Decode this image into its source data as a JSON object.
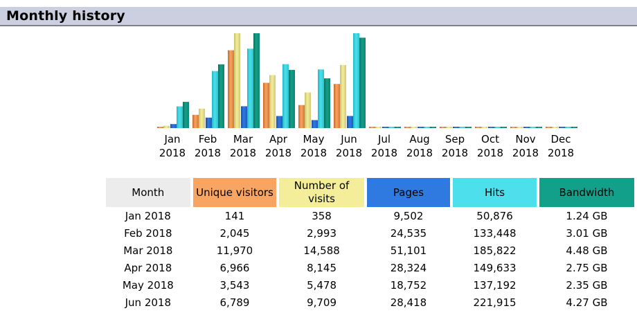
{
  "section": {
    "title": "Monthly history"
  },
  "colors": {
    "header_bg": "#cbcfe0",
    "unique_visitors": "#f8a463",
    "visits": "#f4ee9a",
    "pages": "#2f7ae0",
    "hits": "#4de0ec",
    "bandwidth": "#13a08a",
    "month_header": "#ececec"
  },
  "chart_data": {
    "type": "bar",
    "categories": [
      "Jan 2018",
      "Feb 2018",
      "Mar 2018",
      "Apr 2018",
      "May 2018",
      "Jun 2018",
      "Jul 2018",
      "Aug 2018",
      "Sep 2018",
      "Oct 2018",
      "Nov 2018",
      "Dec 2018"
    ],
    "month_labels": [
      "Jan",
      "Feb",
      "Mar",
      "Apr",
      "May",
      "Jun",
      "Jul",
      "Aug",
      "Sep",
      "Oct",
      "Nov",
      "Dec"
    ],
    "year_label": "2018",
    "series": [
      {
        "name": "Unique visitors",
        "values": [
          141,
          2045,
          11970,
          6966,
          3543,
          6789,
          0,
          0,
          0,
          0,
          0,
          0
        ]
      },
      {
        "name": "Number of visits",
        "values": [
          358,
          2993,
          14588,
          8145,
          5478,
          9709,
          0,
          0,
          0,
          0,
          0,
          0
        ]
      },
      {
        "name": "Pages",
        "values": [
          9502,
          24535,
          51101,
          28324,
          18752,
          28418,
          0,
          0,
          0,
          0,
          0,
          0
        ]
      },
      {
        "name": "Hits",
        "values": [
          50876,
          133448,
          185822,
          149633,
          137192,
          221915,
          0,
          0,
          0,
          0,
          0,
          0
        ]
      },
      {
        "name": "Bandwidth",
        "values": [
          1.24,
          3.01,
          4.48,
          2.75,
          2.35,
          4.27,
          0,
          0,
          0,
          0,
          0,
          0
        ],
        "unit": "GB"
      }
    ],
    "scale": "each pair of series scaled to its own maximum (visitors/visits, pages/hits, bandwidth)"
  },
  "table": {
    "headers": {
      "month": "Month",
      "unique_visitors": "Unique visitors",
      "visits": "Number of visits",
      "pages": "Pages",
      "hits": "Hits",
      "bandwidth": "Bandwidth"
    },
    "rows": [
      [
        "Jan 2018",
        "141",
        "358",
        "9,502",
        "50,876",
        "1.24 GB"
      ],
      [
        "Feb 2018",
        "2,045",
        "2,993",
        "24,535",
        "133,448",
        "3.01 GB"
      ],
      [
        "Mar 2018",
        "11,970",
        "14,588",
        "51,101",
        "185,822",
        "4.48 GB"
      ],
      [
        "Apr 2018",
        "6,966",
        "8,145",
        "28,324",
        "149,633",
        "2.75 GB"
      ],
      [
        "May 2018",
        "3,543",
        "5,478",
        "18,752",
        "137,192",
        "2.35 GB"
      ],
      [
        "Jun 2018",
        "6,789",
        "9,709",
        "28,418",
        "221,915",
        "4.27 GB"
      ]
    ]
  }
}
